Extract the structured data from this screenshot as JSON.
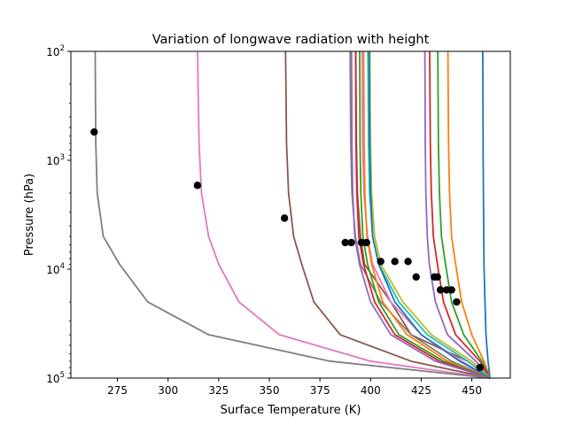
{
  "chart_data": {
    "type": "line",
    "title": "Variation of longwave radiation with height",
    "xlabel": "Surface Temperature (K)",
    "ylabel": "Pressure (hPa)",
    "xlim": [
      252,
      469
    ],
    "ylim": [
      100000,
      100
    ],
    "yscale": "log",
    "y_inverted": true,
    "grid": false,
    "legend": "none",
    "x_ticks": [
      275,
      300,
      325,
      350,
      375,
      400,
      425,
      450
    ],
    "y_ticks": [
      {
        "value": 100,
        "base": "10",
        "exp": "2"
      },
      {
        "value": 1000,
        "base": "10",
        "exp": "3"
      },
      {
        "value": 10000,
        "base": "10",
        "exp": "4"
      },
      {
        "value": 100000,
        "base": "10",
        "exp": "5"
      }
    ],
    "series": [
      {
        "color": "#1f77b4",
        "x": [
          459,
          458,
          457,
          456.5,
          456,
          455.8,
          455.6,
          455.5,
          455.4
        ],
        "y": [
          100000,
          70000,
          40000,
          20000,
          9000,
          3000,
          1000,
          300,
          100
        ]
      },
      {
        "color": "#ff7f0e",
        "x": [
          459,
          456,
          450,
          445,
          442,
          440,
          439,
          438.5,
          438.3,
          438.2
        ],
        "y": [
          100000,
          70000,
          40000,
          20000,
          9000,
          5000,
          2000,
          700,
          200,
          100
        ]
      },
      {
        "color": "#2ca02c",
        "x": [
          459,
          455,
          446,
          440,
          437,
          435,
          434,
          433.5,
          433.3,
          433.2
        ],
        "y": [
          100000,
          70000,
          40000,
          20000,
          9000,
          5000,
          2000,
          700,
          200,
          100
        ]
      },
      {
        "color": "#d62728",
        "x": [
          459,
          454,
          442,
          436,
          433,
          431,
          430,
          429.5,
          429.3,
          429.2
        ],
        "y": [
          100000,
          70000,
          40000,
          20000,
          9000,
          5000,
          2000,
          700,
          200,
          100
        ]
      },
      {
        "color": "#9467bd",
        "x": [
          459,
          452,
          438,
          432,
          429,
          428,
          427.3,
          427,
          426.9,
          426.8
        ],
        "y": [
          100000,
          70000,
          40000,
          20000,
          9000,
          5000,
          2000,
          700,
          200,
          100
        ]
      },
      {
        "color": "#8c564b",
        "x": [
          459,
          448,
          420,
          410,
          397,
          395,
          393.5,
          393,
          392.8,
          392.7
        ],
        "y": [
          100000,
          70000,
          40000,
          20000,
          9000,
          5000,
          2000,
          700,
          200,
          100
        ]
      },
      {
        "color": "#e377c2",
        "x": [
          459,
          445,
          425,
          410,
          401,
          398.5,
          396.7,
          396.1,
          395.9,
          395.8
        ],
        "y": [
          100000,
          70000,
          40000,
          20000,
          9000,
          5000,
          2000,
          700,
          200,
          100
        ]
      },
      {
        "color": "#7f7f7f",
        "x": [
          459,
          440,
          420,
          405,
          395,
          392.5,
          390.8,
          390.2,
          390,
          389.9
        ],
        "y": [
          100000,
          70000,
          40000,
          20000,
          9000,
          5000,
          2000,
          700,
          200,
          100
        ]
      },
      {
        "color": "#bcbd22",
        "x": [
          459,
          450,
          430,
          416,
          405,
          402,
          400.5,
          400,
          399.8,
          399.7
        ],
        "y": [
          100000,
          70000,
          40000,
          20000,
          9000,
          5000,
          2000,
          700,
          200,
          100
        ]
      },
      {
        "color": "#17becf",
        "x": [
          459,
          448,
          428,
          414,
          404,
          401,
          399.5,
          399,
          398.8,
          398.7
        ],
        "y": [
          100000,
          70000,
          40000,
          20000,
          9000,
          5000,
          2000,
          700,
          200,
          100
        ]
      },
      {
        "color": "#1f77b4",
        "x": [
          459,
          444,
          425,
          412,
          404,
          401,
          400,
          399.6,
          399.4,
          399.3
        ],
        "y": [
          100000,
          70000,
          40000,
          20000,
          9000,
          5000,
          2000,
          700,
          200,
          100
        ]
      },
      {
        "color": "#ff7f0e",
        "x": [
          459,
          438,
          418,
          406,
          400.5,
          398.2,
          397.2,
          396.8,
          396.7,
          396.6
        ],
        "y": [
          100000,
          70000,
          40000,
          20000,
          9000,
          5000,
          2000,
          700,
          200,
          100
        ]
      },
      {
        "color": "#2ca02c",
        "x": [
          459,
          436,
          414,
          404,
          398.5,
          396.2,
          395.2,
          394.8,
          394.7,
          394.6
        ],
        "y": [
          100000,
          70000,
          40000,
          20000,
          9000,
          5000,
          2000,
          700,
          200,
          100
        ]
      },
      {
        "color": "#d62728",
        "x": [
          459,
          434,
          412,
          402,
          396.5,
          394.2,
          393.2,
          392.8,
          392.7,
          392.6
        ],
        "y": [
          100000,
          70000,
          40000,
          20000,
          9000,
          5000,
          2000,
          700,
          200,
          100
        ]
      },
      {
        "color": "#9467bd",
        "x": [
          459,
          432,
          410,
          400,
          394.5,
          392.2,
          391.2,
          390.8,
          390.7,
          390.6
        ],
        "y": [
          100000,
          70000,
          40000,
          20000,
          9000,
          5000,
          2000,
          700,
          200,
          100
        ]
      },
      {
        "color": "#8c564b",
        "x": [
          459,
          420,
          385,
          372,
          366,
          362,
          359.5,
          358.5,
          358.2,
          358
        ],
        "y": [
          100000,
          70000,
          40000,
          20000,
          9000,
          5000,
          2000,
          700,
          200,
          100
        ]
      },
      {
        "color": "#e377c2",
        "x": [
          459,
          400,
          355,
          335,
          325,
          320,
          316.5,
          315.3,
          314.8,
          314.6
        ],
        "y": [
          100000,
          70000,
          40000,
          20000,
          9000,
          5000,
          2000,
          700,
          200,
          100
        ]
      },
      {
        "color": "#7f7f7f",
        "x": [
          459,
          380,
          320,
          290,
          276,
          268,
          265,
          264.3,
          264.1,
          264
        ],
        "y": [
          100000,
          70000,
          40000,
          20000,
          9000,
          5000,
          2000,
          700,
          200,
          100
        ]
      }
    ],
    "points": {
      "color": "#000000",
      "x": [
        263.5,
        314.5,
        357.5,
        387.5,
        390.5,
        395.5,
        398,
        405,
        412,
        418.5,
        422.5,
        431.5,
        433,
        434.5,
        437.5,
        440,
        442.5,
        454
      ],
      "y": [
        550,
        1700,
        3400,
        5700,
        5700,
        5700,
        5700,
        8500,
        8500,
        8500,
        11800,
        11800,
        11800,
        15500,
        15500,
        15500,
        20000,
        80000
      ]
    }
  }
}
